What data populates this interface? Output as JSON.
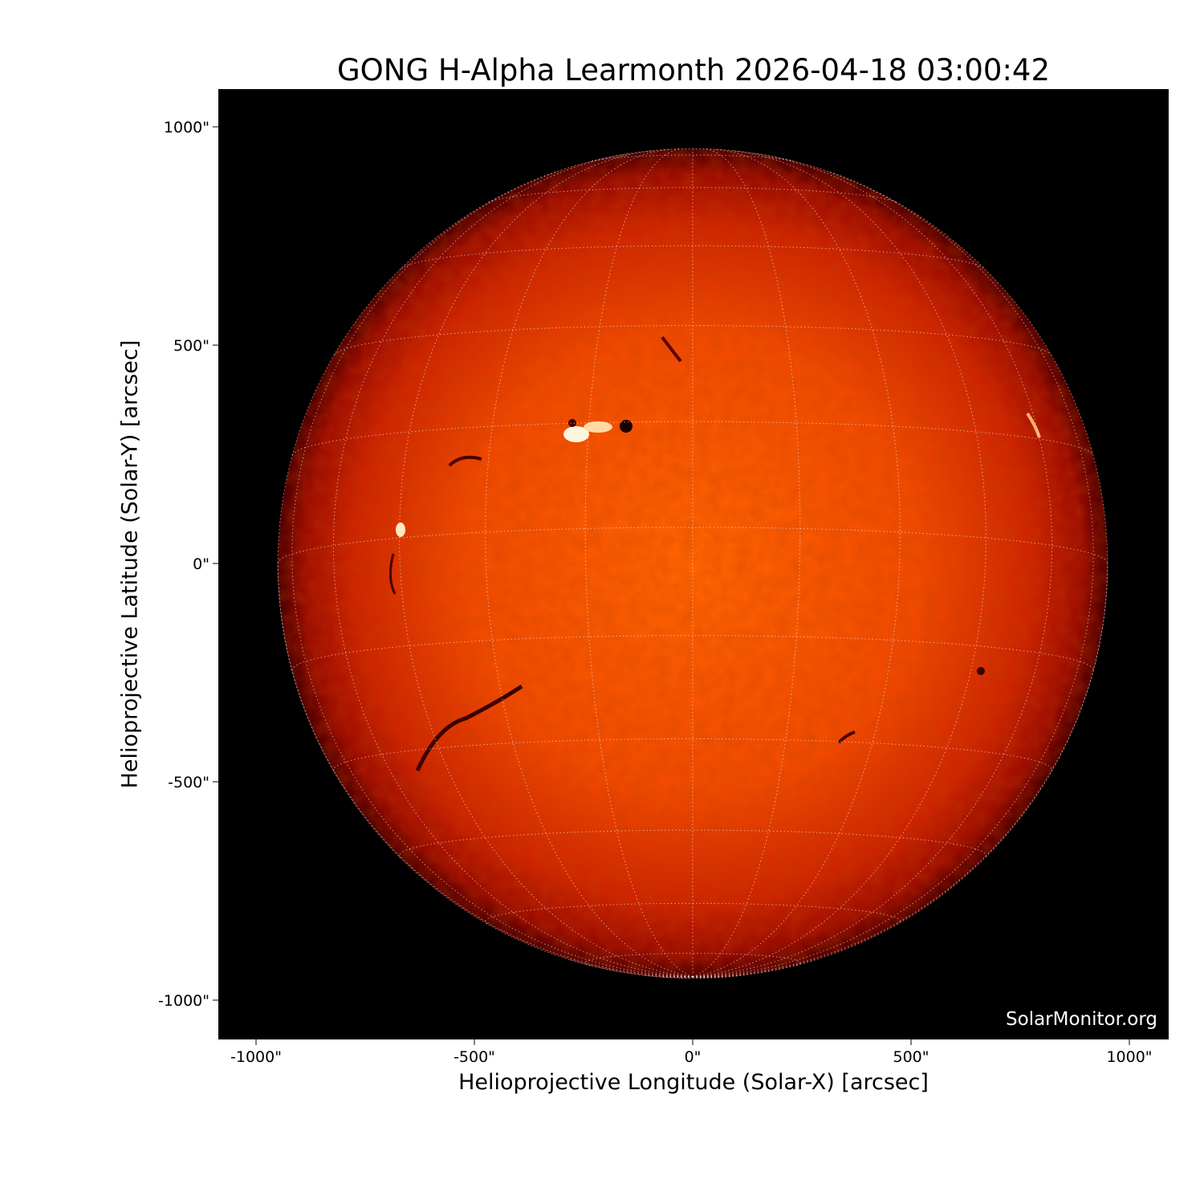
{
  "title": "GONG H-Alpha Learmonth 2026-04-18 03:00:42",
  "xlabel": "Helioprojective Longitude (Solar-X) [arcsec]",
  "ylabel": "Helioprojective Latitude (Solar-Y) [arcsec]",
  "watermark": "SolarMonitor.org",
  "x_ticks": [
    "-1000\"",
    "-500\"",
    "0\"",
    "500\"",
    "1000\""
  ],
  "x_tick_values": [
    -1000,
    -500,
    0,
    500,
    1000
  ],
  "y_ticks": [
    "1000\"",
    "500\"",
    "0\"",
    "-500\"",
    "-1000\""
  ],
  "y_tick_values": [
    1000,
    500,
    0,
    -500,
    -1000
  ],
  "axis_range_arcsec": {
    "x": [
      -1085,
      1090
    ],
    "y": [
      -1090,
      1085
    ]
  },
  "solar_radius_arcsec": 950,
  "grid": {
    "spacing_deg": 15,
    "style": "dotted",
    "color": "#ffffff"
  },
  "colors": {
    "background": "#000000",
    "disk_center": "#ff5a00",
    "disk_limb": "#6a0000",
    "plage": "#fff4dc",
    "filament": "#3a0000"
  }
}
